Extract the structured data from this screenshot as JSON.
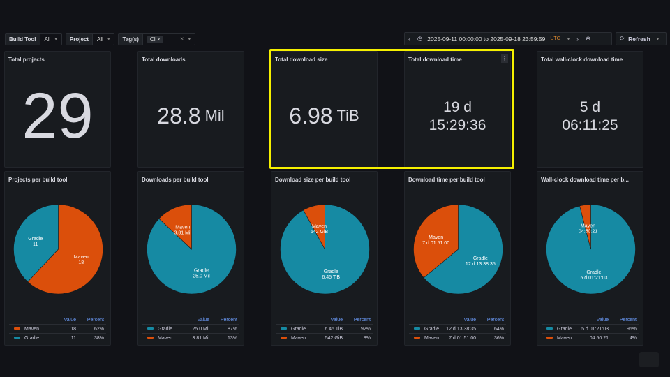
{
  "variables": [
    {
      "label": "Build Tool",
      "value": "All"
    },
    {
      "label": "Project",
      "value": "All"
    },
    {
      "label": "Tag(s)",
      "chip": "CI"
    }
  ],
  "timepicker": {
    "range": "2025-09-11 00:00:00 to 2025-09-18 23:59:59",
    "tz": "UTC",
    "refresh": "Refresh"
  },
  "colors": {
    "gradle": "#168aa3",
    "maven": "#db4f0b",
    "highlight": "#f5f000"
  },
  "legend_headers": {
    "value": "Value",
    "percent": "Percent"
  },
  "stats": [
    {
      "title": "Total projects",
      "value": "29",
      "unit": ""
    },
    {
      "title": "Total downloads",
      "value": "28.8",
      "unit": "Mil"
    },
    {
      "title": "Total download size",
      "value": "6.98",
      "unit": "TiB"
    },
    {
      "title": "Total download time",
      "line1": "19 d",
      "line2": "15:29:36"
    },
    {
      "title": "Total wall-clock download time",
      "line1": "5 d",
      "line2": "06:11:25"
    }
  ],
  "pies": [
    {
      "title": "Projects per build tool",
      "slices": [
        {
          "name": "Maven",
          "value": "18",
          "percent": "62%",
          "pct": 62
        },
        {
          "name": "Gradle",
          "value": "11",
          "percent": "38%",
          "pct": 38
        }
      ]
    },
    {
      "title": "Downloads per build tool",
      "slices": [
        {
          "name": "Gradle",
          "value": "25.0 Mil",
          "percent": "87%",
          "pct": 87
        },
        {
          "name": "Maven",
          "value": "3.81 Mil",
          "percent": "13%",
          "pct": 13
        }
      ]
    },
    {
      "title": "Download size per build tool",
      "slices": [
        {
          "name": "Gradle",
          "value": "6.45 TiB",
          "percent": "92%",
          "pct": 92
        },
        {
          "name": "Maven",
          "value": "542 GiB",
          "percent": "8%",
          "pct": 8
        }
      ]
    },
    {
      "title": "Download time per build tool",
      "slices": [
        {
          "name": "Gradle",
          "value": "12 d 13:38:35",
          "percent": "64%",
          "pct": 64
        },
        {
          "name": "Maven",
          "value": "7 d 01:51:00",
          "percent": "36%",
          "pct": 36
        }
      ]
    },
    {
      "title": "Wall-clock download time per b...",
      "slices": [
        {
          "name": "Gradle",
          "value": "5 d 01:21:03",
          "percent": "96%",
          "pct": 96
        },
        {
          "name": "Maven",
          "value": "04:50:21",
          "percent": "4%",
          "pct": 4
        }
      ]
    }
  ]
}
